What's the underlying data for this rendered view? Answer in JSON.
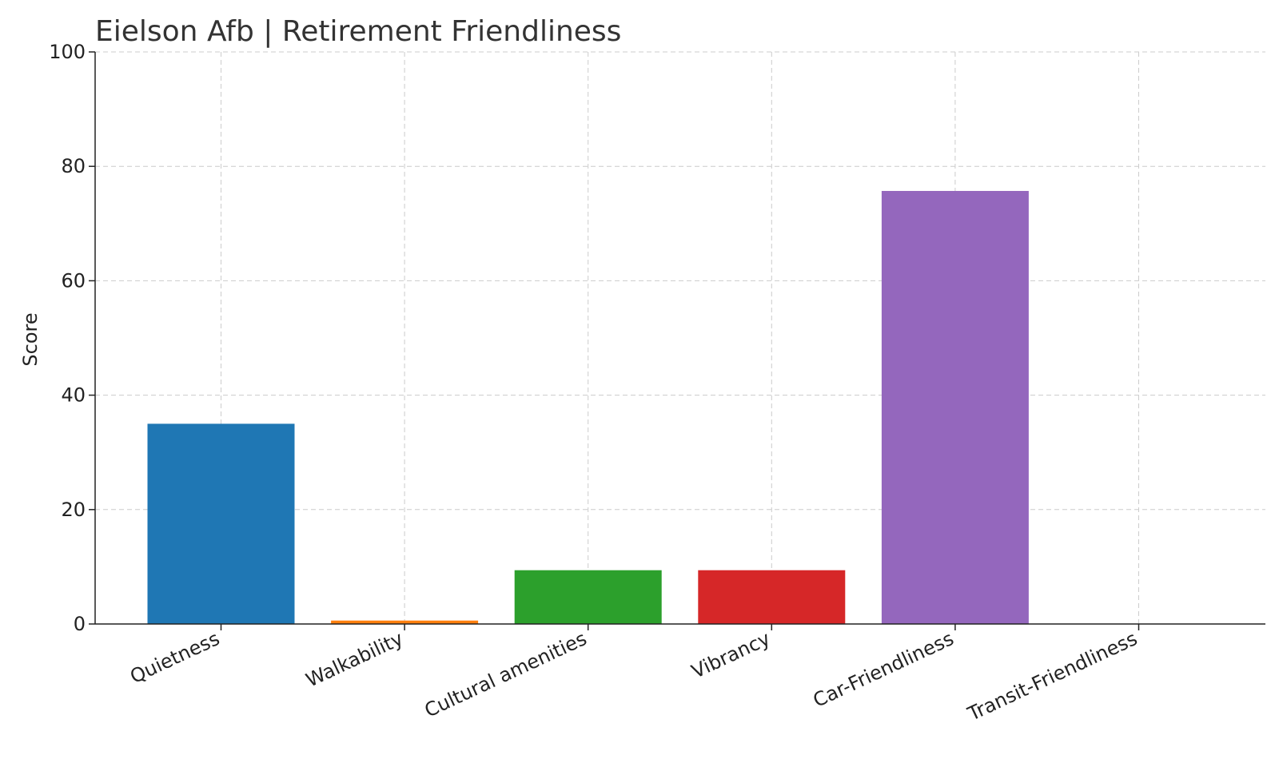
{
  "chart_data": {
    "type": "bar",
    "title": "Eielson Afb | Retirement Friendliness",
    "xlabel": "",
    "ylabel": "Score",
    "ylim": [
      0,
      100
    ],
    "yticks": [
      0,
      20,
      40,
      60,
      80,
      100
    ],
    "grid": true,
    "categories": [
      "Quietness",
      "Walkability",
      "Cultural amenities",
      "Vibrancy",
      "Car-Friendliness",
      "Transit-Friendliness"
    ],
    "values": [
      35,
      0.6,
      9.4,
      9.4,
      75.7,
      0
    ],
    "colors": [
      "#1f77b4",
      "#ff7f0e",
      "#2ca02c",
      "#d62728",
      "#9467bd",
      "#8c564b"
    ]
  }
}
